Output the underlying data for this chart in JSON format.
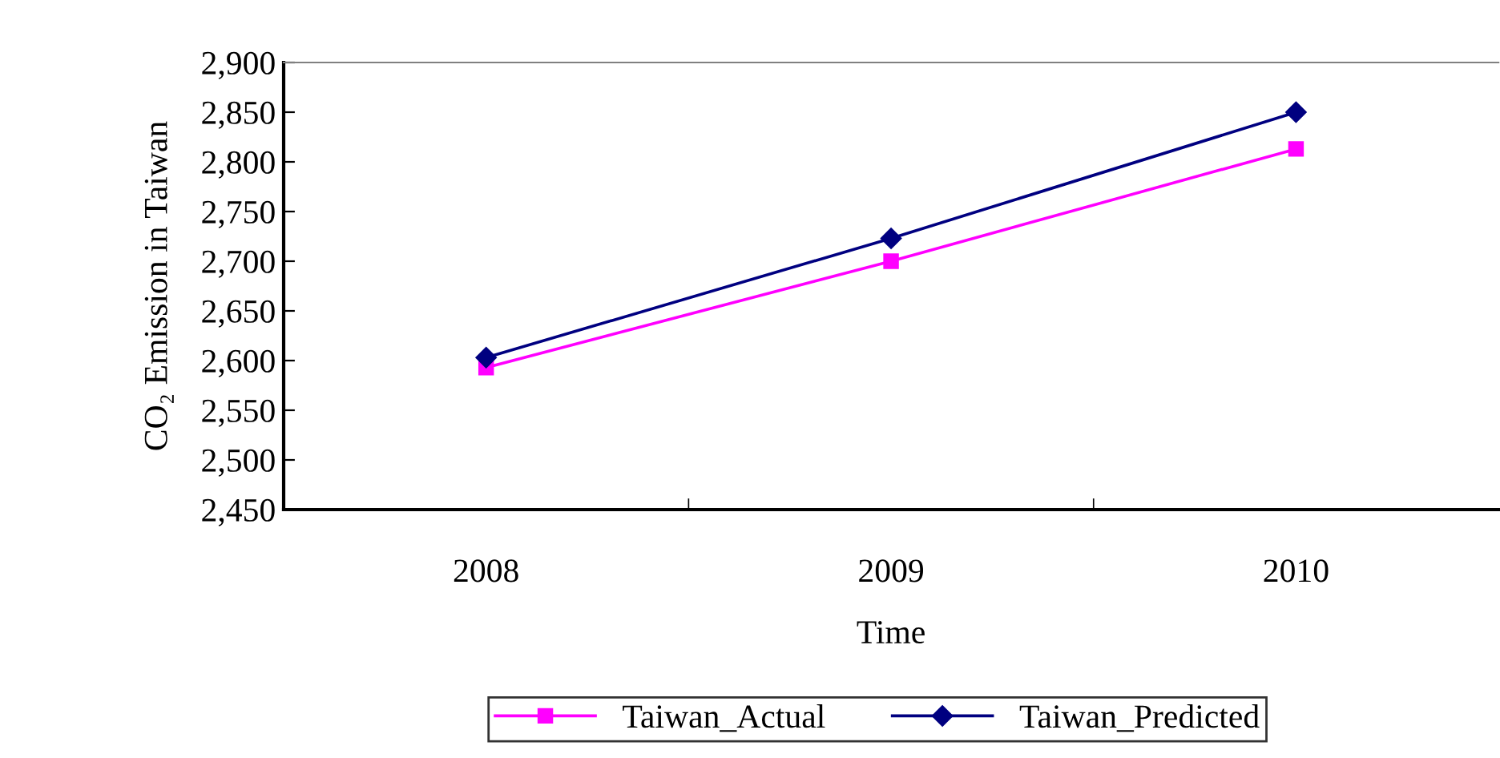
{
  "chart_data": {
    "type": "line",
    "xlabel": "Time",
    "ylabel": "CO₂ Emission in Taiwan",
    "categories": [
      "2008",
      "2009",
      "2010"
    ],
    "series": [
      {
        "name": "Taiwan_Actual",
        "color": "#ff00ff",
        "marker": "square",
        "values": [
          2593,
          2700,
          2813
        ]
      },
      {
        "name": "Taiwan_Predicted",
        "color": "#000080",
        "marker": "diamond",
        "values": [
          2603,
          2723,
          2850
        ]
      }
    ],
    "ylim": [
      2450,
      2900
    ],
    "yticks": [
      {
        "value": 2450,
        "label": "2,450"
      },
      {
        "value": 2500,
        "label": "2,500"
      },
      {
        "value": 2550,
        "label": "2,550"
      },
      {
        "value": 2600,
        "label": "2,600"
      },
      {
        "value": 2650,
        "label": "2,650"
      },
      {
        "value": 2700,
        "label": "2,700"
      },
      {
        "value": 2750,
        "label": "2,750"
      },
      {
        "value": 2800,
        "label": "2,800"
      },
      {
        "value": 2850,
        "label": "2,850"
      },
      {
        "value": 2900,
        "label": "2,900"
      }
    ],
    "grid": false,
    "legend": "bottom"
  }
}
